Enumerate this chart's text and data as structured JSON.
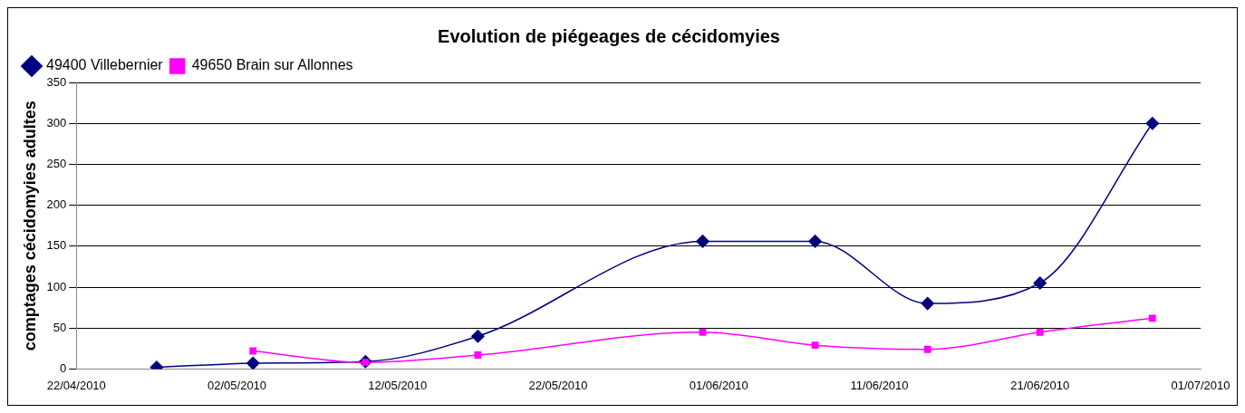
{
  "chart_data": {
    "type": "line",
    "title": "Evolution de piégeages de cécidomyies",
    "ylabel": "comptages cécidomyies adultes",
    "x": [
      "2010-04-27",
      "2010-05-03",
      "2010-05-10",
      "2010-05-17",
      "2010-05-31",
      "2010-06-07",
      "2010-06-14",
      "2010-06-21",
      "2010-06-28"
    ],
    "series": [
      {
        "name": "49400 Villebernier",
        "color": "#000080",
        "marker": "diamond",
        "values": [
          2,
          7,
          9,
          40,
          156,
          156,
          80,
          105,
          300
        ]
      },
      {
        "name": "49650 Brain sur Allonnes",
        "color": "#ff00ff",
        "marker": "square",
        "x": [
          "2010-05-03",
          "2010-05-10",
          "2010-05-17",
          "2010-05-31",
          "2010-06-07",
          "2010-06-14",
          "2010-06-21",
          "2010-06-28"
        ],
        "values": [
          22,
          8,
          17,
          45,
          29,
          24,
          45,
          62
        ]
      }
    ],
    "xlim": [
      "2010-04-22",
      "2010-07-01"
    ],
    "xticks": [
      {
        "value": "2010-04-22",
        "label": "22/04/2010"
      },
      {
        "value": "2010-05-02",
        "label": "02/05/2010"
      },
      {
        "value": "2010-05-12",
        "label": "12/05/2010"
      },
      {
        "value": "2010-05-22",
        "label": "22/05/2010"
      },
      {
        "value": "2010-06-01",
        "label": "01/06/2010"
      },
      {
        "value": "2010-06-11",
        "label": "11/06/2010"
      },
      {
        "value": "2010-06-21",
        "label": "21/06/2010"
      },
      {
        "value": "2010-07-01",
        "label": "01/07/2010"
      }
    ],
    "ylim": [
      0,
      350
    ],
    "yticks": [
      0,
      50,
      100,
      150,
      200,
      250,
      300,
      350
    ],
    "grid": "y",
    "legend": "top left"
  }
}
